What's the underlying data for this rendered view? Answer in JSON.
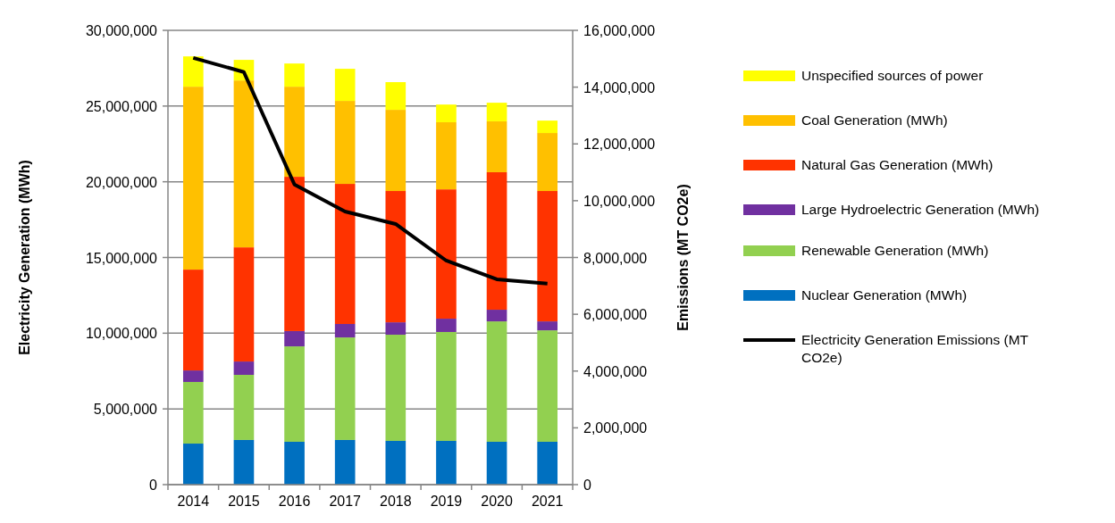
{
  "chart_data": {
    "type": "bar",
    "stacked": true,
    "categories": [
      "2014",
      "2015",
      "2016",
      "2017",
      "2018",
      "2019",
      "2020",
      "2021"
    ],
    "ylabel": "Electricity Generation (MWh)",
    "y2label": "Emissions (MT CO2e)",
    "ylim": [
      0,
      30000000
    ],
    "yticks": [
      {
        "value": 0,
        "label": "0"
      },
      {
        "value": 5000000,
        "label": "5,000,000"
      },
      {
        "value": 10000000,
        "label": "10,000,000"
      },
      {
        "value": 15000000,
        "label": "15,000,000"
      },
      {
        "value": 20000000,
        "label": "20,000,000"
      },
      {
        "value": 25000000,
        "label": "25,000,000"
      },
      {
        "value": 30000000,
        "label": "30,000,000"
      }
    ],
    "y2lim": [
      0,
      16000000
    ],
    "y2ticks": [
      {
        "value": 0,
        "label": "0"
      },
      {
        "value": 2000000,
        "label": "2,000,000"
      },
      {
        "value": 4000000,
        "label": "4,000,000"
      },
      {
        "value": 6000000,
        "label": "6,000,000"
      },
      {
        "value": 8000000,
        "label": "8,000,000"
      },
      {
        "value": 10000000,
        "label": "10,000,000"
      },
      {
        "value": 12000000,
        "label": "12,000,000"
      },
      {
        "value": 14000000,
        "label": "14,000,000"
      },
      {
        "value": 16000000,
        "label": "16,000,000"
      }
    ],
    "grid": "y",
    "legend": "right",
    "series": [
      {
        "name": "Nuclear Generation (MWh)",
        "color": "#0070c0",
        "values": [
          2710000,
          2950000,
          2830000,
          2950000,
          2890000,
          2890000,
          2830000,
          2830000
        ]
      },
      {
        "name": "Renewable Generation (MWh)",
        "color": "#92d050",
        "values": [
          4070000,
          4300000,
          6300000,
          6770000,
          7010000,
          7190000,
          7950000,
          7360000
        ]
      },
      {
        "name": "Large Hydroelectric Generation (MWh)",
        "color": "#7030a0",
        "values": [
          760000,
          880000,
          1010000,
          890000,
          820000,
          880000,
          770000,
          590000
        ]
      },
      {
        "name": "Natural Gas Generation (MWh)",
        "color": "#ff3300",
        "values": [
          6660000,
          7540000,
          10190000,
          9250000,
          8670000,
          8540000,
          9080000,
          8610000
        ]
      },
      {
        "name": "Coal Generation (MWh)",
        "color": "#ffc000",
        "values": [
          12080000,
          11020000,
          5950000,
          5480000,
          5360000,
          4430000,
          3360000,
          3830000
        ]
      },
      {
        "name": "Unspecified sources of power",
        "color": "#ffff00",
        "values": [
          2000000,
          1360000,
          1530000,
          2120000,
          1830000,
          1170000,
          1230000,
          820000
        ]
      },
      {
        "name": "Electricity Generation Emissions (MT CO2e)",
        "type": "line",
        "axis": "y2",
        "color": "#000000",
        "marker": "none",
        "values": [
          15030000,
          14530000,
          10570000,
          9620000,
          9180000,
          7890000,
          7230000,
          7080000
        ]
      }
    ]
  }
}
